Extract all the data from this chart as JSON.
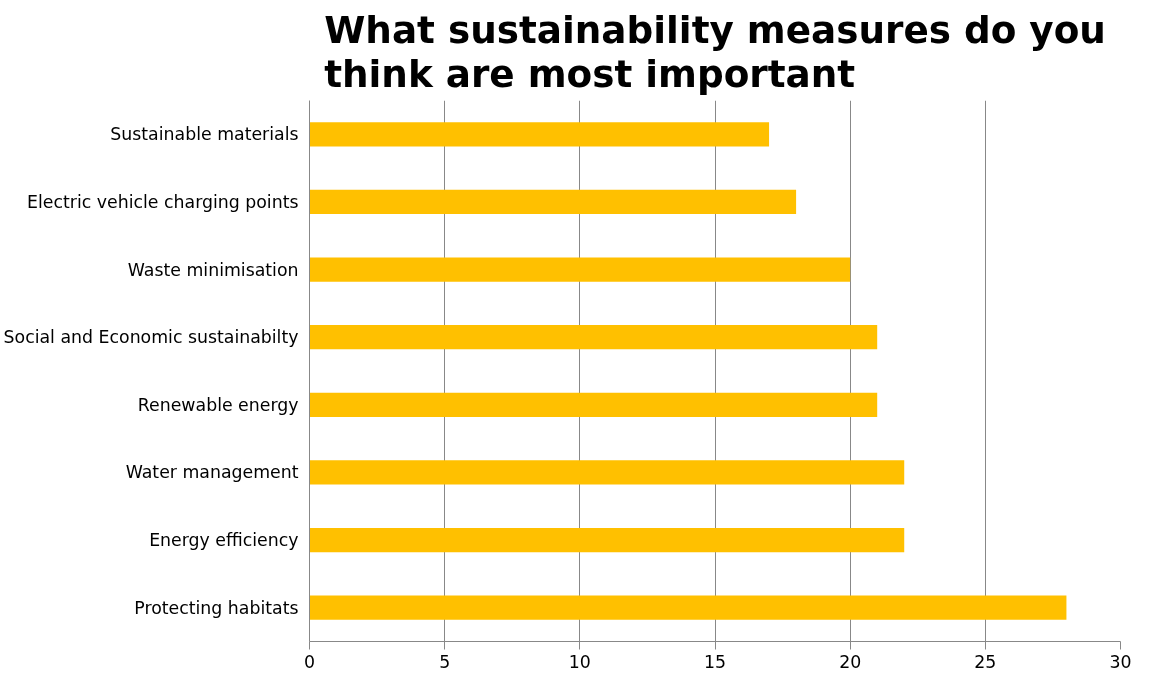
{
  "chart_data": {
    "type": "bar",
    "orientation": "horizontal",
    "title": "What sustainability measures do you\nthink are most important",
    "categories": [
      "Sustainable materials",
      "Electric vehicle charging points",
      "Waste minimisation",
      "Social and Economic sustainabilty",
      "Renewable energy",
      "Water management",
      "Energy efficiency",
      "Protecting habitats"
    ],
    "values": [
      17,
      18,
      20,
      21,
      21,
      22,
      22,
      28
    ],
    "color": "#ffc000",
    "xlim": [
      0,
      30
    ],
    "xticks": [
      0,
      5,
      10,
      15,
      20,
      25,
      30
    ],
    "grid": "x"
  }
}
